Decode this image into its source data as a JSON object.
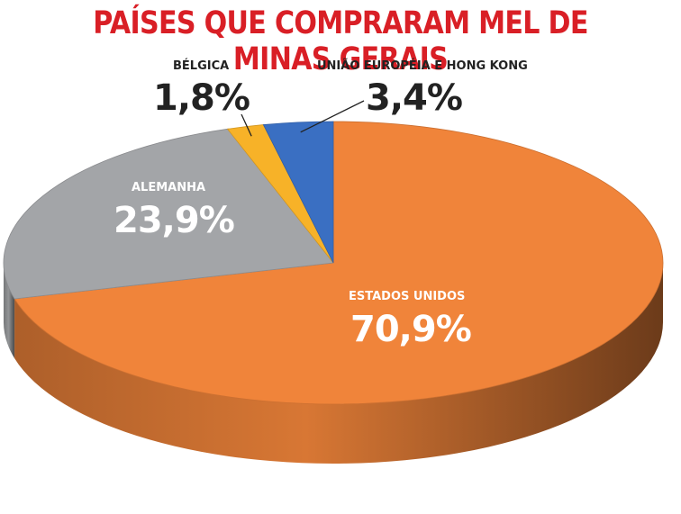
{
  "chart_data": {
    "type": "pie",
    "title": "PAÍSES QUE COMPRARAM MEL DE MINAS GERAIS",
    "slices": [
      {
        "name": "ESTADOS UNIDOS",
        "value": 70.9,
        "label": "70,9%",
        "color": "#f0843a"
      },
      {
        "name": "ALEMANHA",
        "value": 23.9,
        "label": "23,9%",
        "color": "#a3a5a8"
      },
      {
        "name": "BÉLGICA",
        "value": 1.8,
        "label": "1,8%",
        "color": "#f7b228"
      },
      {
        "name": "UNIÃO EUROPÉIA E HONG KONG",
        "value": 3.4,
        "label": "3,4%",
        "color": "#3a6fc2"
      }
    ],
    "legend": "none",
    "grid": false
  },
  "colors": {
    "title": "#d91f26",
    "label_dark": "#222222",
    "label_light": "#ffffff"
  }
}
